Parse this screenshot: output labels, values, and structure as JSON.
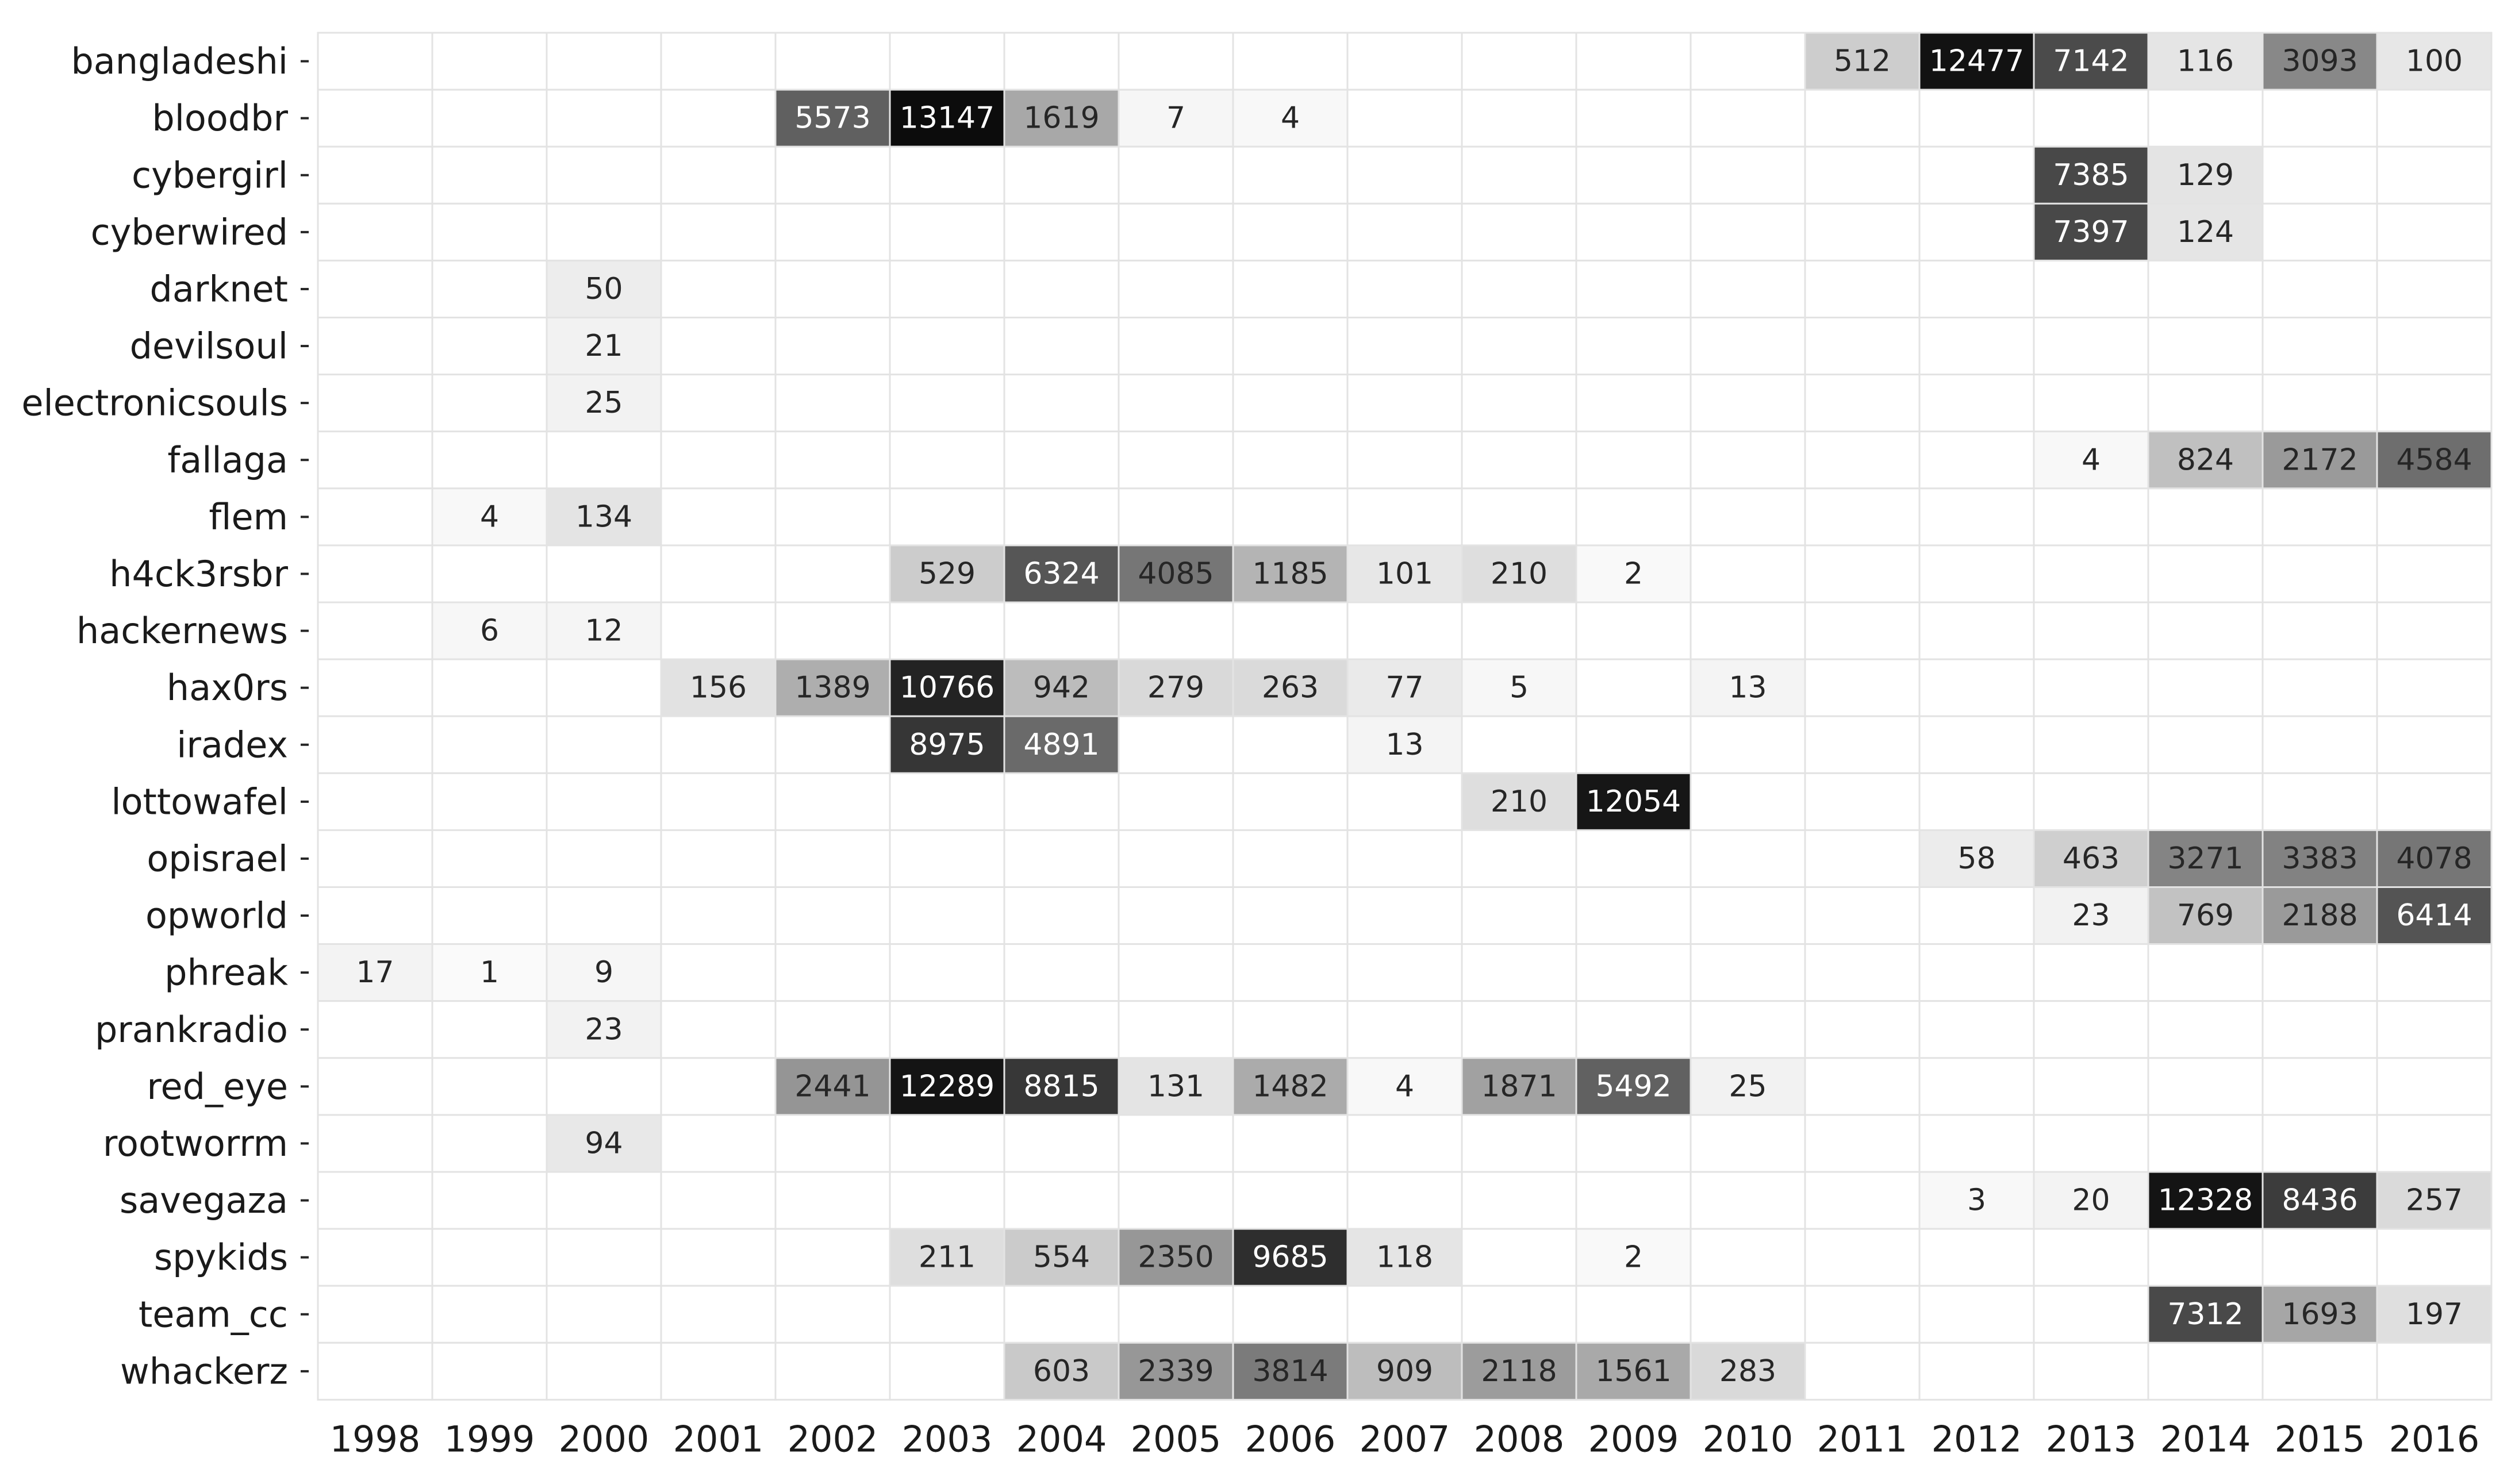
{
  "chart_data": {
    "type": "heatmap",
    "title": "",
    "xlabel": "",
    "ylabel": "",
    "x": [
      "1998",
      "1999",
      "2000",
      "2001",
      "2002",
      "2003",
      "2004",
      "2005",
      "2006",
      "2007",
      "2008",
      "2009",
      "2010",
      "2011",
      "2012",
      "2013",
      "2014",
      "2015",
      "2016"
    ],
    "y": [
      "bangladeshi",
      "bloodbr",
      "cybergirl",
      "cyberwired",
      "darknet",
      "devilsoul",
      "electronicsouls",
      "fallaga",
      "flem",
      "h4ck3rsbr",
      "hackernews",
      "hax0rs",
      "iradex",
      "lottowafel",
      "opisrael",
      "opworld",
      "phreak",
      "prankradio",
      "red_eye",
      "rootworrm",
      "savegaza",
      "spykids",
      "team_cc",
      "whackerz"
    ],
    "values": [
      [
        null,
        null,
        null,
        null,
        null,
        null,
        null,
        null,
        null,
        null,
        null,
        null,
        null,
        512,
        12477,
        7142,
        116,
        3093,
        100
      ],
      [
        null,
        null,
        null,
        null,
        5573,
        13147,
        1619,
        7,
        4,
        null,
        null,
        null,
        null,
        null,
        null,
        null,
        null,
        null,
        null
      ],
      [
        null,
        null,
        null,
        null,
        null,
        null,
        null,
        null,
        null,
        null,
        null,
        null,
        null,
        null,
        null,
        7385,
        129,
        null,
        null
      ],
      [
        null,
        null,
        null,
        null,
        null,
        null,
        null,
        null,
        null,
        null,
        null,
        null,
        null,
        null,
        null,
        7397,
        124,
        null,
        null
      ],
      [
        null,
        null,
        50,
        null,
        null,
        null,
        null,
        null,
        null,
        null,
        null,
        null,
        null,
        null,
        null,
        null,
        null,
        null,
        null
      ],
      [
        null,
        null,
        21,
        null,
        null,
        null,
        null,
        null,
        null,
        null,
        null,
        null,
        null,
        null,
        null,
        null,
        null,
        null,
        null
      ],
      [
        null,
        null,
        25,
        null,
        null,
        null,
        null,
        null,
        null,
        null,
        null,
        null,
        null,
        null,
        null,
        null,
        null,
        null,
        null
      ],
      [
        null,
        null,
        null,
        null,
        null,
        null,
        null,
        null,
        null,
        null,
        null,
        null,
        null,
        null,
        null,
        4,
        824,
        2172,
        4584
      ],
      [
        null,
        4,
        134,
        null,
        null,
        null,
        null,
        null,
        null,
        null,
        null,
        null,
        null,
        null,
        null,
        null,
        null,
        null,
        null
      ],
      [
        null,
        null,
        null,
        null,
        null,
        529,
        6324,
        4085,
        1185,
        101,
        210,
        2,
        null,
        null,
        null,
        null,
        null,
        null,
        null
      ],
      [
        null,
        6,
        12,
        null,
        null,
        null,
        null,
        null,
        null,
        null,
        null,
        null,
        null,
        null,
        null,
        null,
        null,
        null,
        null
      ],
      [
        null,
        null,
        null,
        156,
        1389,
        10766,
        942,
        279,
        263,
        77,
        5,
        null,
        13,
        null,
        null,
        null,
        null,
        null,
        null
      ],
      [
        null,
        null,
        null,
        null,
        null,
        8975,
        4891,
        null,
        null,
        13,
        null,
        null,
        null,
        null,
        null,
        null,
        null,
        null,
        null
      ],
      [
        null,
        null,
        null,
        null,
        null,
        null,
        null,
        null,
        null,
        null,
        210,
        12054,
        null,
        null,
        null,
        null,
        null,
        null,
        null
      ],
      [
        null,
        null,
        null,
        null,
        null,
        null,
        null,
        null,
        null,
        null,
        null,
        null,
        null,
        null,
        58,
        463,
        3271,
        3383,
        4078
      ],
      [
        null,
        null,
        null,
        null,
        null,
        null,
        null,
        null,
        null,
        null,
        null,
        null,
        null,
        null,
        null,
        23,
        769,
        2188,
        6414
      ],
      [
        17,
        1,
        9,
        null,
        null,
        null,
        null,
        null,
        null,
        null,
        null,
        null,
        null,
        null,
        null,
        null,
        null,
        null,
        null
      ],
      [
        null,
        null,
        23,
        null,
        null,
        null,
        null,
        null,
        null,
        null,
        null,
        null,
        null,
        null,
        null,
        null,
        null,
        null,
        null
      ],
      [
        null,
        null,
        null,
        null,
        2441,
        12289,
        8815,
        131,
        1482,
        4,
        1871,
        5492,
        25,
        null,
        null,
        null,
        null,
        null,
        null
      ],
      [
        null,
        null,
        94,
        null,
        null,
        null,
        null,
        null,
        null,
        null,
        null,
        null,
        null,
        null,
        null,
        null,
        null,
        null,
        null
      ],
      [
        null,
        null,
        null,
        null,
        null,
        null,
        null,
        null,
        null,
        null,
        null,
        null,
        null,
        null,
        3,
        20,
        12328,
        8436,
        257
      ],
      [
        null,
        null,
        null,
        null,
        null,
        211,
        554,
        2350,
        9685,
        118,
        null,
        2,
        null,
        null,
        null,
        null,
        null,
        null,
        null
      ],
      [
        null,
        null,
        null,
        null,
        null,
        null,
        null,
        null,
        null,
        null,
        null,
        null,
        null,
        null,
        null,
        null,
        7312,
        1693,
        197
      ],
      [
        null,
        null,
        null,
        null,
        null,
        null,
        603,
        2339,
        3814,
        909,
        2118,
        1561,
        283,
        null,
        null,
        null,
        null,
        null,
        null
      ]
    ],
    "color_scale": "greys",
    "grid": true,
    "legend": "none"
  }
}
